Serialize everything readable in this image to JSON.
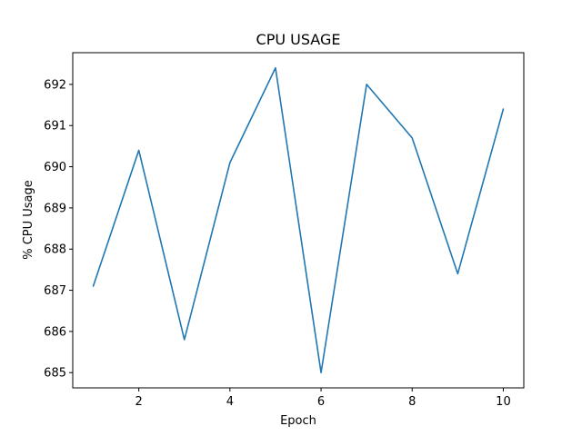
{
  "chart_data": {
    "type": "line",
    "title": "CPU USAGE",
    "xlabel": "Epoch",
    "ylabel": "% CPU Usage",
    "x": [
      1,
      2,
      3,
      4,
      5,
      6,
      7,
      8,
      9,
      10
    ],
    "series": [
      {
        "values": [
          687.1,
          690.4,
          685.8,
          690.1,
          692.4,
          685.0,
          692.0,
          690.7,
          687.4,
          691.4
        ],
        "color": "#1f77b4"
      }
    ],
    "xlim": [
      0.55,
      10.45
    ],
    "ylim": [
      684.63,
      692.77
    ],
    "xticks": [
      2,
      4,
      6,
      8,
      10
    ],
    "yticks": [
      685,
      686,
      687,
      688,
      689,
      690,
      691,
      692
    ],
    "grid": false,
    "legend": "none"
  }
}
